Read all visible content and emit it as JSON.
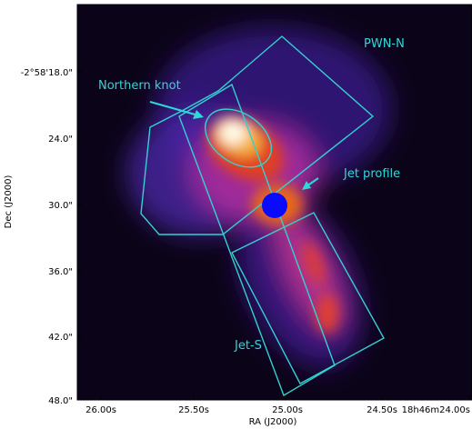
{
  "axes": {
    "x_label": "RA (J2000)",
    "y_label": "Dec (J2000)",
    "x_ticks": [
      "26.00s",
      "25.50s",
      "25.00s",
      "24.50s",
      "18h46m24.00s"
    ],
    "y_ticks": [
      "-2°58'18.0\"",
      "24.0\"",
      "30.0\"",
      "36.0\"",
      "42.0\"",
      "48.0\""
    ]
  },
  "annotations": {
    "pwn_n": "PWN-N",
    "northern_knot": "Northern knot",
    "jet_profile": "Jet profile",
    "jet_s": "Jet-S"
  }
}
